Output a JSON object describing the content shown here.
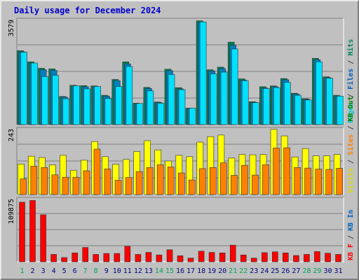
{
  "chart_data": {
    "type": "bar",
    "title": "Daily usage for December 2024",
    "categories": [
      "1",
      "2",
      "3",
      "4",
      "5",
      "6",
      "7",
      "8",
      "9",
      "10",
      "11",
      "12",
      "13",
      "14",
      "15",
      "16",
      "17",
      "18",
      "19",
      "20",
      "21",
      "22",
      "23",
      "24",
      "25",
      "26",
      "27",
      "28",
      "29",
      "30",
      "31"
    ],
    "weekend_days": [
      "1",
      "7",
      "8",
      "14",
      "15",
      "21",
      "22",
      "28",
      "29"
    ],
    "panels": [
      {
        "max_label": "3579",
        "ymax": 3579,
        "legend": [
          {
            "text": "Pages",
            "color": "#00c8d8"
          },
          {
            "text": " / ",
            "color": "#404040"
          },
          {
            "text": "Files",
            "color": "#0060c0"
          },
          {
            "text": " / ",
            "color": "#404040"
          },
          {
            "text": "Hits",
            "color": "#008060"
          }
        ],
        "series": [
          {
            "name": "Hits",
            "color": "#00805a",
            "values": [
              2520,
              2140,
              1920,
              1900,
              960,
              1340,
              1330,
              1320,
              1000,
              1540,
              2140,
              730,
              1270,
              770,
              1890,
              1260,
              560,
              3539,
              1870,
              1960,
              2810,
              1560,
              780,
              1290,
              1320,
              1570,
              1070,
              880,
              2260,
              1630,
              1000
            ]
          },
          {
            "name": "Files",
            "color": "#0080c0",
            "values": [
              2480,
              2090,
              1870,
              1850,
              940,
              1300,
              1290,
              1290,
              970,
              1500,
              2070,
              710,
              1230,
              750,
              1840,
              1220,
              540,
              3490,
              1830,
              1910,
              2700,
              1520,
              760,
              1250,
              1290,
              1530,
              1040,
              860,
              2210,
              1600,
              970
            ]
          },
          {
            "name": "Pages",
            "color": "#00e0ff",
            "values": [
              2470,
              2100,
              1640,
              1680,
              880,
              1320,
              1220,
              1300,
              890,
              1300,
              1980,
              720,
              1150,
              730,
              1710,
              1190,
              560,
              3500,
              1730,
              1790,
              2580,
              1500,
              750,
              1230,
              1260,
              1440,
              1000,
              840,
              2140,
              1580,
              970
            ]
          }
        ]
      },
      {
        "max_label": "243",
        "ymax": 243,
        "legend": [
          {
            "text": "Visits",
            "color": "#d8d800"
          },
          {
            "text": " / ",
            "color": "#404040"
          },
          {
            "text": "Sites",
            "color": "#ff8000"
          },
          {
            "text": " / ",
            "color": "#404040"
          },
          {
            "text": "KB Out",
            "color": "#008000"
          }
        ],
        "series": [
          {
            "name": "Visits",
            "color": "#ffff00",
            "values": [
              113,
              142,
              137,
              110,
              145,
              90,
              127,
              196,
              140,
              112,
              130,
              159,
              199,
              165,
              124,
              145,
              140,
              194,
              214,
              220,
              135,
              148,
              147,
              148,
              241,
              217,
              139,
              170,
              143,
              143,
              148
            ]
          },
          {
            "name": "Sites",
            "color": "#ff8000",
            "values": [
              58,
              105,
              100,
              73,
              64,
              64,
              88,
              168,
              95,
              53,
              63,
              85,
              100,
              110,
              102,
              80,
              54,
              96,
              100,
              117,
              71,
              108,
              72,
              110,
              172,
              173,
              100,
              98,
              94,
              93,
              97
            ]
          }
        ]
      },
      {
        "max_label": "109875",
        "ymax": 109875,
        "legend": [
          {
            "text": "KB F",
            "color": "#ff0000"
          },
          {
            "text": " / ",
            "color": "#404040"
          },
          {
            "text": "KB In",
            "color": "#0060c0"
          }
        ],
        "series": [
          {
            "name": "KB F",
            "color": "#ff0000",
            "values": [
              104000,
              107000,
              82000,
              13000,
              7500,
              15500,
              25000,
              13000,
              14500,
              14500,
              27000,
              13000,
              16500,
              12000,
              21000,
              10500,
              6500,
              18500,
              16500,
              15500,
              29000,
              12000,
              6500,
              16000,
              17500,
              15500,
              11000,
              13000,
              18000,
              15000,
              13000
            ]
          }
        ]
      }
    ]
  }
}
